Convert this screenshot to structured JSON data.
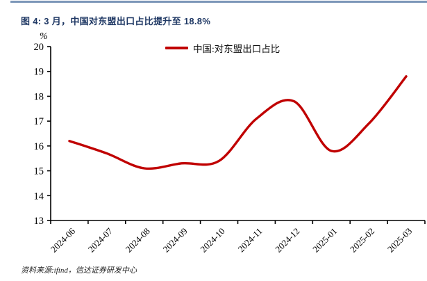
{
  "title": "图 4: 3 月，中国对东盟出口占比提升至 18.8%",
  "footer": {
    "source": "资料来源:ifind，信达证券研发中心"
  },
  "colors": {
    "accent_red": "#C00000",
    "title_navy": "#1F3864",
    "top_rule_blue": "#7B96B8",
    "axis_black": "#000000"
  },
  "chart_data": {
    "type": "line",
    "title": "中国:对东盟出口占比",
    "unit_label": "%",
    "categories": [
      "2024-06",
      "2024-07",
      "2024-08",
      "2024-09",
      "2024-10",
      "2024-11",
      "2024-12",
      "2025-01",
      "2025-02",
      "2025-03"
    ],
    "series": [
      {
        "name": "中国:对东盟出口占比",
        "color": "#C00000",
        "values": [
          16.2,
          15.7,
          15.1,
          15.3,
          15.4,
          17.1,
          17.8,
          15.8,
          16.9,
          18.8
        ]
      }
    ],
    "ylim": [
      13,
      20
    ],
    "yticks": [
      13,
      14,
      15,
      16,
      17,
      18,
      19,
      20
    ],
    "grid": false,
    "smooth": true,
    "legend_position": "top"
  }
}
